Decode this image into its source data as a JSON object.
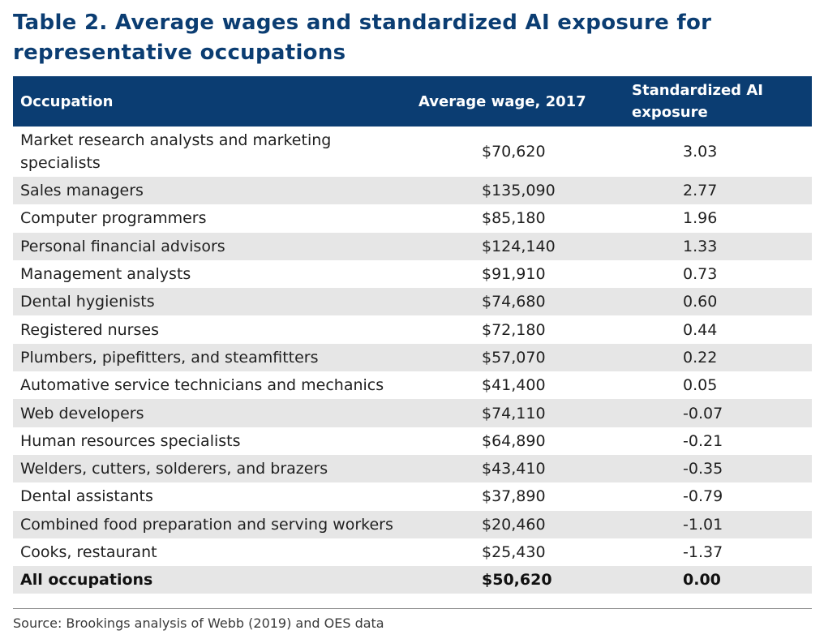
{
  "title": "Table 2. Average wages and standardized AI exposure for representative occupations",
  "header": {
    "occupation": "Occupation",
    "wage": "Average wage, 2017",
    "exposure_line1": "Standardized AI",
    "exposure_line2": "exposure"
  },
  "rows": [
    {
      "occupation": "Market research analysts and marketing specialists",
      "wage": "$70,620",
      "exposure": "3.03"
    },
    {
      "occupation": "Sales managers",
      "wage": "$135,090",
      "exposure": "2.77"
    },
    {
      "occupation": "Computer programmers",
      "wage": "$85,180",
      "exposure": "1.96"
    },
    {
      "occupation": "Personal financial advisors",
      "wage": "$124,140",
      "exposure": "1.33"
    },
    {
      "occupation": "Management analysts",
      "wage": "$91,910",
      "exposure": "0.73"
    },
    {
      "occupation": "Dental hygienists",
      "wage": "$74,680",
      "exposure": "0.60"
    },
    {
      "occupation": "Registered nurses",
      "wage": "$72,180",
      "exposure": "0.44"
    },
    {
      "occupation": "Plumbers, pipefitters, and steamfitters",
      "wage": "$57,070",
      "exposure": "0.22"
    },
    {
      "occupation": "Automative service technicians and mechanics",
      "wage": "$41,400",
      "exposure": "0.05"
    },
    {
      "occupation": "Web developers",
      "wage": "$74,110",
      "exposure": "-0.07"
    },
    {
      "occupation": "Human resources specialists",
      "wage": "$64,890",
      "exposure": "-0.21"
    },
    {
      "occupation": "Welders, cutters, solderers, and brazers",
      "wage": "$43,410",
      "exposure": "-0.35"
    },
    {
      "occupation": "Dental assistants",
      "wage": "$37,890",
      "exposure": "-0.79"
    },
    {
      "occupation": "Combined food preparation and serving workers",
      "wage": "$20,460",
      "exposure": "-1.01"
    },
    {
      "occupation": "Cooks, restaurant",
      "wage": "$25,430",
      "exposure": "-1.37"
    }
  ],
  "total": {
    "occupation": "All occupations",
    "wage": "$50,620",
    "exposure": "0.00"
  },
  "source": "Source: Brookings analysis of Webb (2019) and OES data",
  "colors": {
    "header_bg": "#0b3d72",
    "title_text": "#0b3d72",
    "shade_row": "#e6e6e6"
  }
}
